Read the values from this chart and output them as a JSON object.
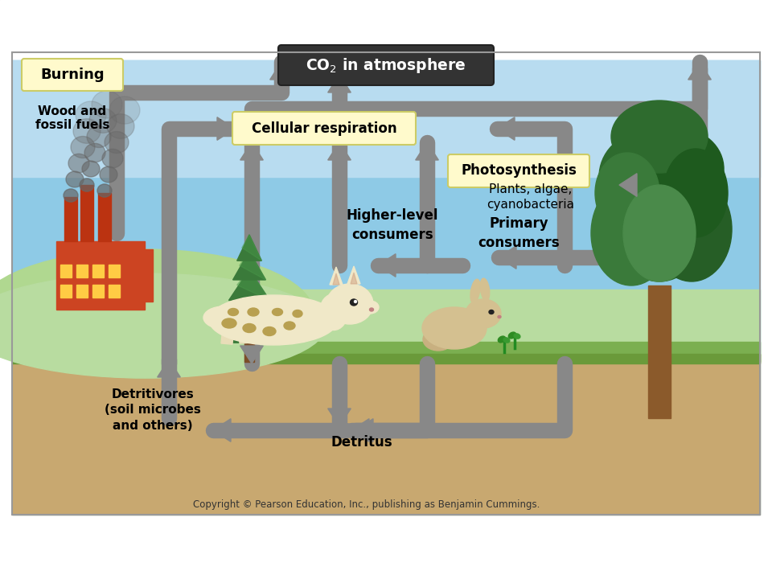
{
  "sky_color": "#8ECAE6",
  "sky_top_color": "#B8DCF0",
  "ground_green_color": "#A8D8A0",
  "soil_color": "#C8A870",
  "arrow_color": "#888888",
  "arrow_lw": 14,
  "labels": {
    "co2": "CO$_2$ in atmosphere",
    "burning": "Burning",
    "wood_fossil": "Wood and\nfossil fuels",
    "cellular_resp": "Cellular respiration",
    "photosynthesis": "Photosynthesis",
    "plants": "Plants, algae,\ncyanobacteria",
    "higher_consumers": "Higher-level\nconsumers",
    "primary_consumers": "Primary\nconsumers",
    "detritivores": "Detritivores\n(soil microbes\nand others)",
    "detritus": "Detritus",
    "copyright": "Copyright © Pearson Education, Inc., publishing as Benjamin Cummings."
  },
  "box_co2_fc": "#333333",
  "box_co2_tc": "#ffffff",
  "box_yellow_fc": "#FFFACC",
  "box_yellow_ec": "#CCCC66",
  "burn_box_fc": "#FFFACC",
  "burn_box_ec": "#CCCC66"
}
